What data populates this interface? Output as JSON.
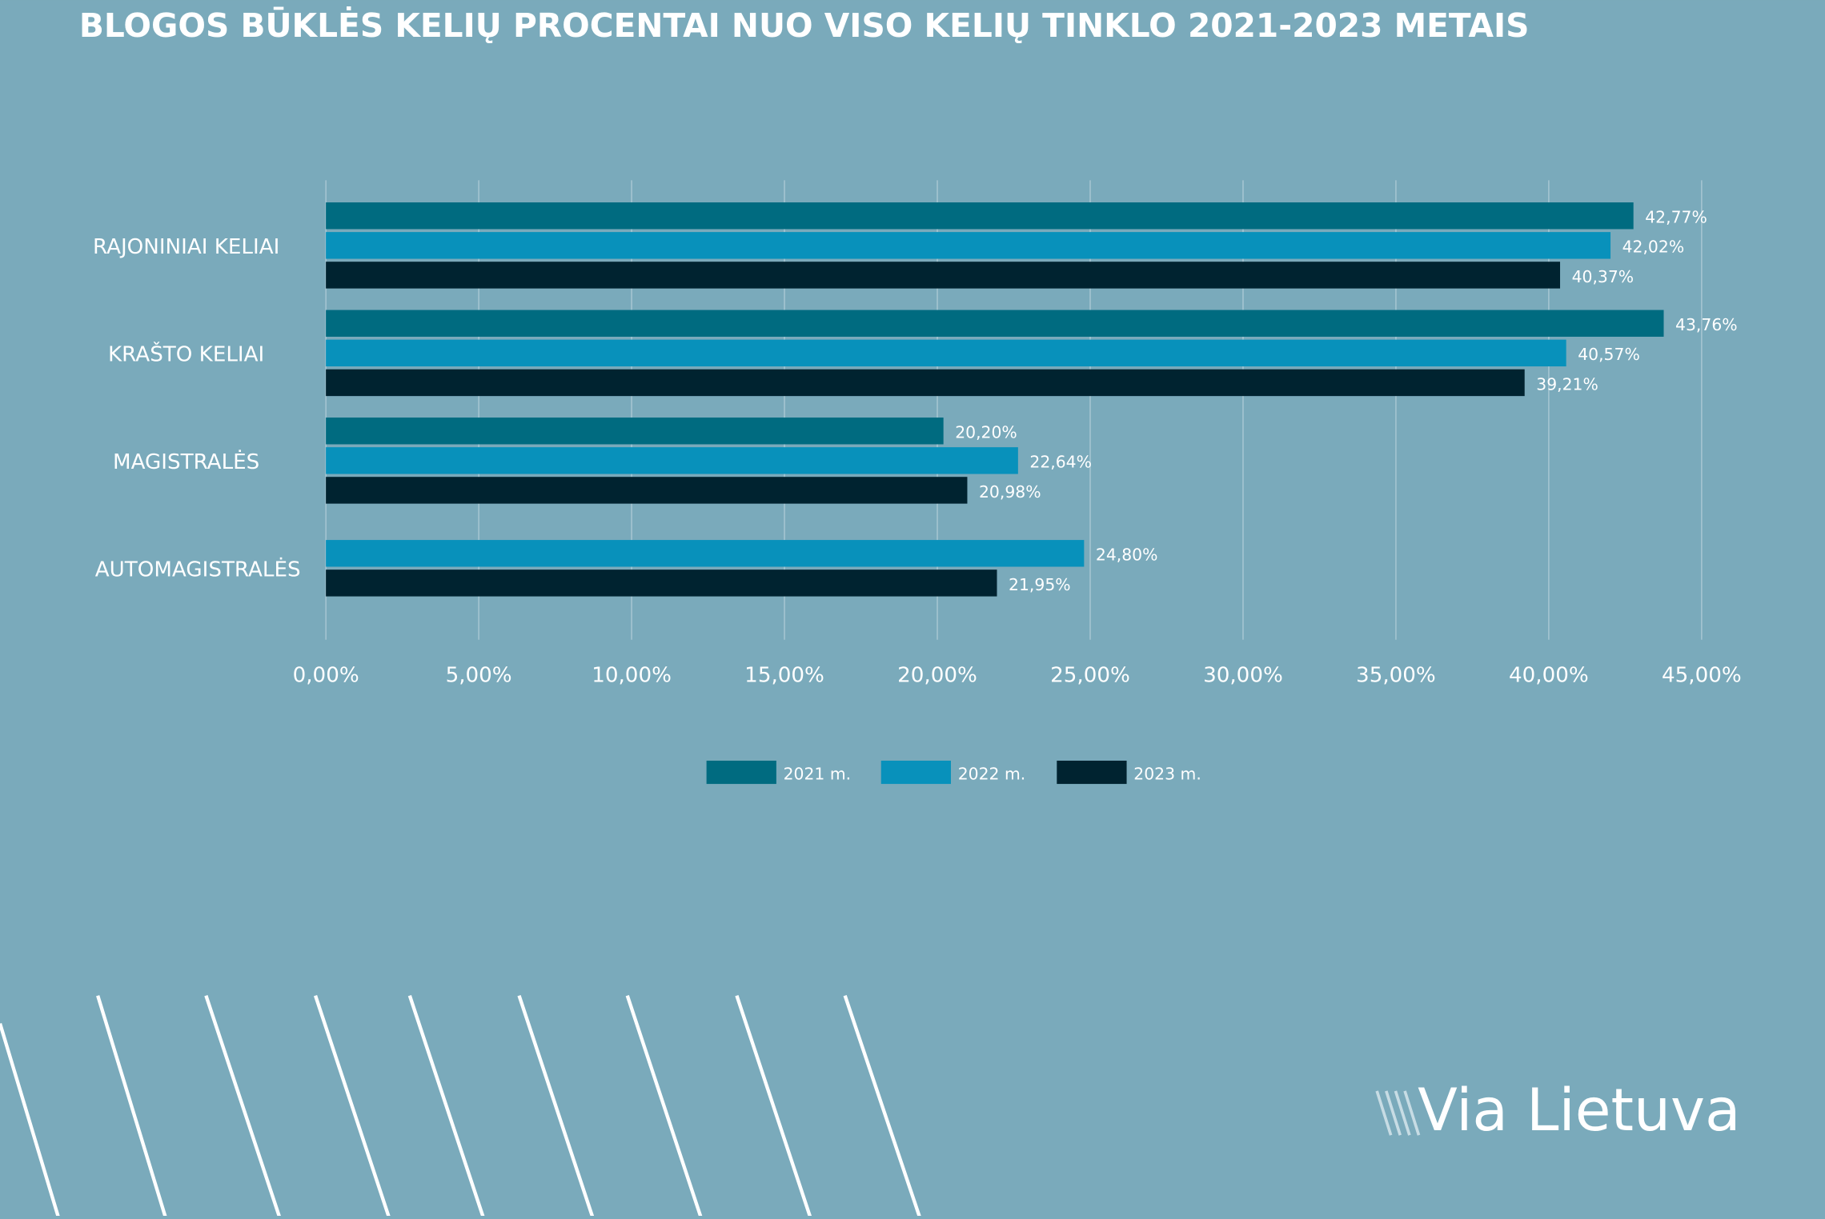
{
  "chart_data": {
    "type": "barh",
    "title": "BLOGOS BŪKLĖS KELIŲ PROCENTAI NUO VISO KELIŲ TINKLO 2021-2023 METAIS",
    "categories": [
      "RAJONINIAI KELIAI",
      "KRAŠTO KELIAI",
      "MAGISTRALĖS",
      "AUTOMAGISTRALĖS"
    ],
    "series": [
      {
        "name": "2021 m.",
        "color": "#006b80",
        "values": [
          42.77,
          43.76,
          20.2,
          null
        ],
        "value_labels": [
          "42,77%",
          "43,76%",
          "20,20%",
          null
        ]
      },
      {
        "name": "2022 m.",
        "color": "#0891bb",
        "values": [
          42.02,
          40.57,
          22.64,
          24.8
        ],
        "value_labels": [
          "42,02%",
          "40,57%",
          "22,64%",
          "24,80%"
        ]
      },
      {
        "name": "2023 m.",
        "color": "#002330",
        "values": [
          40.37,
          39.21,
          20.98,
          21.95
        ],
        "value_labels": [
          "40,37%",
          "39,21%",
          "20,98%",
          "21,95%"
        ]
      }
    ],
    "xlim": [
      0,
      45
    ],
    "xticks": [
      {
        "value": 0,
        "label": "0,00%"
      },
      {
        "value": 5,
        "label": "5,00%"
      },
      {
        "value": 10,
        "label": "10,00%"
      },
      {
        "value": 15,
        "label": "15,00%"
      },
      {
        "value": 20,
        "label": "20,00%"
      },
      {
        "value": 25,
        "label": "25,00%"
      },
      {
        "value": 30,
        "label": "30,00%"
      },
      {
        "value": 35,
        "label": "35,00%"
      },
      {
        "value": 40,
        "label": "40,00%"
      },
      {
        "value": 45,
        "label": "45,00%"
      }
    ],
    "grid": true,
    "legend": "bottom"
  },
  "logo": "Via Lietuva"
}
